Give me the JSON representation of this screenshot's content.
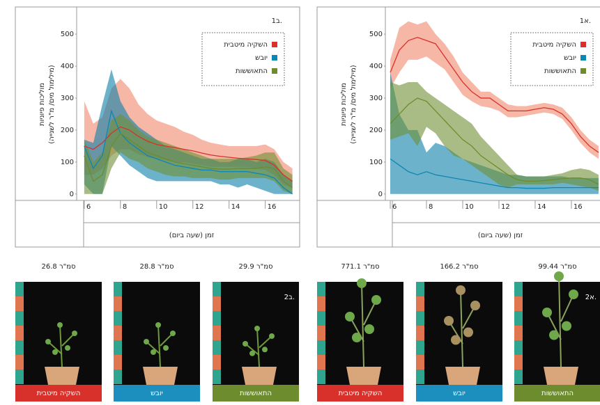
{
  "chart_data": [
    {
      "type": "band-line",
      "title": "ב1.",
      "ylabel": "מוליכות פיוניות",
      "ylabel2": "(מילימול מים/ מ\"ר לשנייה)",
      "xlabel": "זמן (שעה ביום)",
      "x": [
        6,
        6.5,
        7,
        7.5,
        8,
        8.5,
        9,
        9.5,
        10,
        10.5,
        11,
        11.5,
        12,
        12.5,
        13,
        13.5,
        14,
        14.5,
        15,
        15.5,
        16,
        16.5,
        17,
        17.5
      ],
      "xlim": [
        5.58,
        17.9
      ],
      "xticks": [
        6,
        8,
        10,
        12,
        14,
        16
      ],
      "ylim": [
        -20,
        585
      ],
      "yticks": [
        0,
        100,
        200,
        300,
        400,
        500
      ],
      "legend": "top-right",
      "series": [
        {
          "name": "השקיה מיטבית",
          "color": "#d8312b",
          "band_color": "#f0876a",
          "values": [
            150,
            140,
            160,
            190,
            210,
            200,
            180,
            165,
            155,
            150,
            145,
            140,
            135,
            128,
            122,
            118,
            115,
            112,
            110,
            108,
            105,
            90,
            60,
            40
          ],
          "lower": [
            60,
            60,
            80,
            120,
            140,
            140,
            125,
            115,
            110,
            105,
            100,
            100,
            95,
            90,
            85,
            85,
            85,
            85,
            85,
            80,
            75,
            60,
            30,
            20
          ],
          "upper": [
            290,
            220,
            240,
            330,
            360,
            330,
            280,
            250,
            230,
            220,
            210,
            195,
            185,
            170,
            160,
            155,
            150,
            150,
            150,
            150,
            155,
            140,
            100,
            80
          ]
        },
        {
          "name": "יובש",
          "color": "#0e86b4",
          "band_color": "#0a7fa8",
          "values": [
            150,
            80,
            120,
            260,
            190,
            160,
            140,
            120,
            110,
            100,
            90,
            85,
            80,
            75,
            75,
            70,
            70,
            70,
            70,
            65,
            60,
            50,
            20,
            0
          ],
          "lower": [
            30,
            0,
            0,
            150,
            120,
            90,
            70,
            50,
            40,
            40,
            40,
            40,
            40,
            40,
            40,
            30,
            30,
            20,
            30,
            20,
            10,
            0,
            0,
            0
          ],
          "upper": [
            170,
            160,
            280,
            390,
            290,
            240,
            210,
            190,
            170,
            150,
            140,
            130,
            120,
            110,
            110,
            100,
            100,
            110,
            110,
            100,
            110,
            100,
            60,
            40
          ]
        },
        {
          "name": "התאוששות",
          "color": "#6d8c2e",
          "band_color": "#6f9033",
          "values": [
            120,
            40,
            60,
            150,
            190,
            170,
            150,
            130,
            120,
            110,
            100,
            95,
            90,
            85,
            80,
            78,
            78,
            80,
            80,
            80,
            85,
            80,
            40,
            20
          ],
          "lower": [
            0,
            0,
            0,
            80,
            130,
            110,
            100,
            80,
            70,
            60,
            55,
            55,
            50,
            50,
            50,
            45,
            45,
            50,
            50,
            50,
            50,
            40,
            10,
            0
          ],
          "upper": [
            170,
            100,
            130,
            230,
            250,
            230,
            200,
            180,
            170,
            160,
            150,
            140,
            130,
            120,
            110,
            110,
            110,
            110,
            115,
            120,
            130,
            130,
            80,
            60
          ]
        }
      ]
    },
    {
      "type": "band-line",
      "title": "א1.",
      "ylabel": "מוליכות פיוניות",
      "ylabel2": "(מילימול מים/ מ\"ר לשנייה)",
      "xlabel": "זמן (שעה ביום)",
      "x": [
        6,
        6.5,
        7,
        7.5,
        8,
        8.5,
        9,
        9.5,
        10,
        10.5,
        11,
        11.5,
        12,
        12.5,
        13,
        13.5,
        14,
        14.5,
        15,
        15.5,
        16,
        16.5,
        17,
        17.5
      ],
      "xlim": [
        5.73,
        17.58
      ],
      "xticks": [
        6,
        8,
        10,
        12,
        14,
        16
      ],
      "ylim": [
        -20,
        585
      ],
      "yticks": [
        0,
        100,
        200,
        300,
        400,
        500
      ],
      "legend": "top-right",
      "series": [
        {
          "name": "השקיה מיטבית",
          "color": "#d8312b",
          "band_color": "#f0876a",
          "values": [
            380,
            450,
            480,
            490,
            480,
            470,
            430,
            390,
            350,
            320,
            300,
            300,
            280,
            260,
            260,
            260,
            265,
            270,
            265,
            250,
            220,
            180,
            150,
            130
          ],
          "lower": [
            330,
            380,
            420,
            420,
            430,
            410,
            390,
            350,
            310,
            290,
            275,
            270,
            260,
            240,
            240,
            245,
            250,
            255,
            250,
            235,
            200,
            160,
            130,
            110
          ],
          "upper": [
            420,
            520,
            540,
            530,
            540,
            500,
            470,
            430,
            380,
            350,
            320,
            320,
            300,
            280,
            275,
            275,
            280,
            285,
            280,
            270,
            240,
            200,
            170,
            150
          ]
        },
        {
          "name": "יובש",
          "color": "#0e86b4",
          "band_color": "#0a7fa8",
          "values": [
            110,
            90,
            70,
            60,
            70,
            60,
            55,
            50,
            45,
            40,
            35,
            30,
            25,
            20,
            20,
            18,
            18,
            18,
            20,
            20,
            20,
            20,
            20,
            20
          ],
          "lower": [
            0,
            0,
            0,
            0,
            0,
            0,
            0,
            0,
            0,
            0,
            0,
            0,
            0,
            0,
            0,
            0,
            0,
            0,
            0,
            0,
            0,
            0,
            0,
            0
          ],
          "upper": [
            380,
            250,
            200,
            200,
            130,
            160,
            150,
            130,
            110,
            100,
            90,
            80,
            70,
            60,
            60,
            55,
            55,
            55,
            55,
            55,
            50,
            50,
            50,
            50
          ]
        },
        {
          "name": "התאוששות",
          "color": "#6d8c2e",
          "band_color": "#6f9033",
          "values": [
            220,
            250,
            280,
            300,
            290,
            260,
            230,
            200,
            170,
            150,
            120,
            100,
            80,
            60,
            45,
            40,
            40,
            42,
            45,
            48,
            50,
            50,
            45,
            30
          ],
          "lower": [
            170,
            180,
            190,
            150,
            210,
            190,
            150,
            120,
            110,
            90,
            70,
            50,
            30,
            20,
            30,
            30,
            30,
            30,
            30,
            35,
            30,
            25,
            20,
            10
          ],
          "upper": [
            350,
            340,
            350,
            350,
            320,
            300,
            280,
            260,
            240,
            220,
            180,
            150,
            120,
            90,
            60,
            55,
            55,
            55,
            60,
            65,
            75,
            80,
            75,
            60
          ]
        }
      ]
    }
  ],
  "photo_groups": [
    {
      "label": "ב2.",
      "panels": [
        {
          "area": "26.8 סמ\"ר",
          "caption": "השקיה מיטבית",
          "color": "#d8312b"
        },
        {
          "area": "28.8 סמ\"ר",
          "caption": "יובש",
          "color": "#1d8fbf"
        },
        {
          "area": "29.9 סמ\"ר",
          "caption": "התאוששות",
          "color": "#6d8c2e"
        }
      ]
    },
    {
      "label": "א2.",
      "panels": [
        {
          "area": "771.1 סמ\"ר",
          "caption": "השקיה מיטבית",
          "color": "#d8312b"
        },
        {
          "area": "166.2 סמ\"ר",
          "caption": "יובש",
          "color": "#1d8fbf"
        },
        {
          "area": "99.44 סמ\"ר",
          "caption": "התאוששות",
          "color": "#6d8c2e"
        }
      ]
    }
  ]
}
